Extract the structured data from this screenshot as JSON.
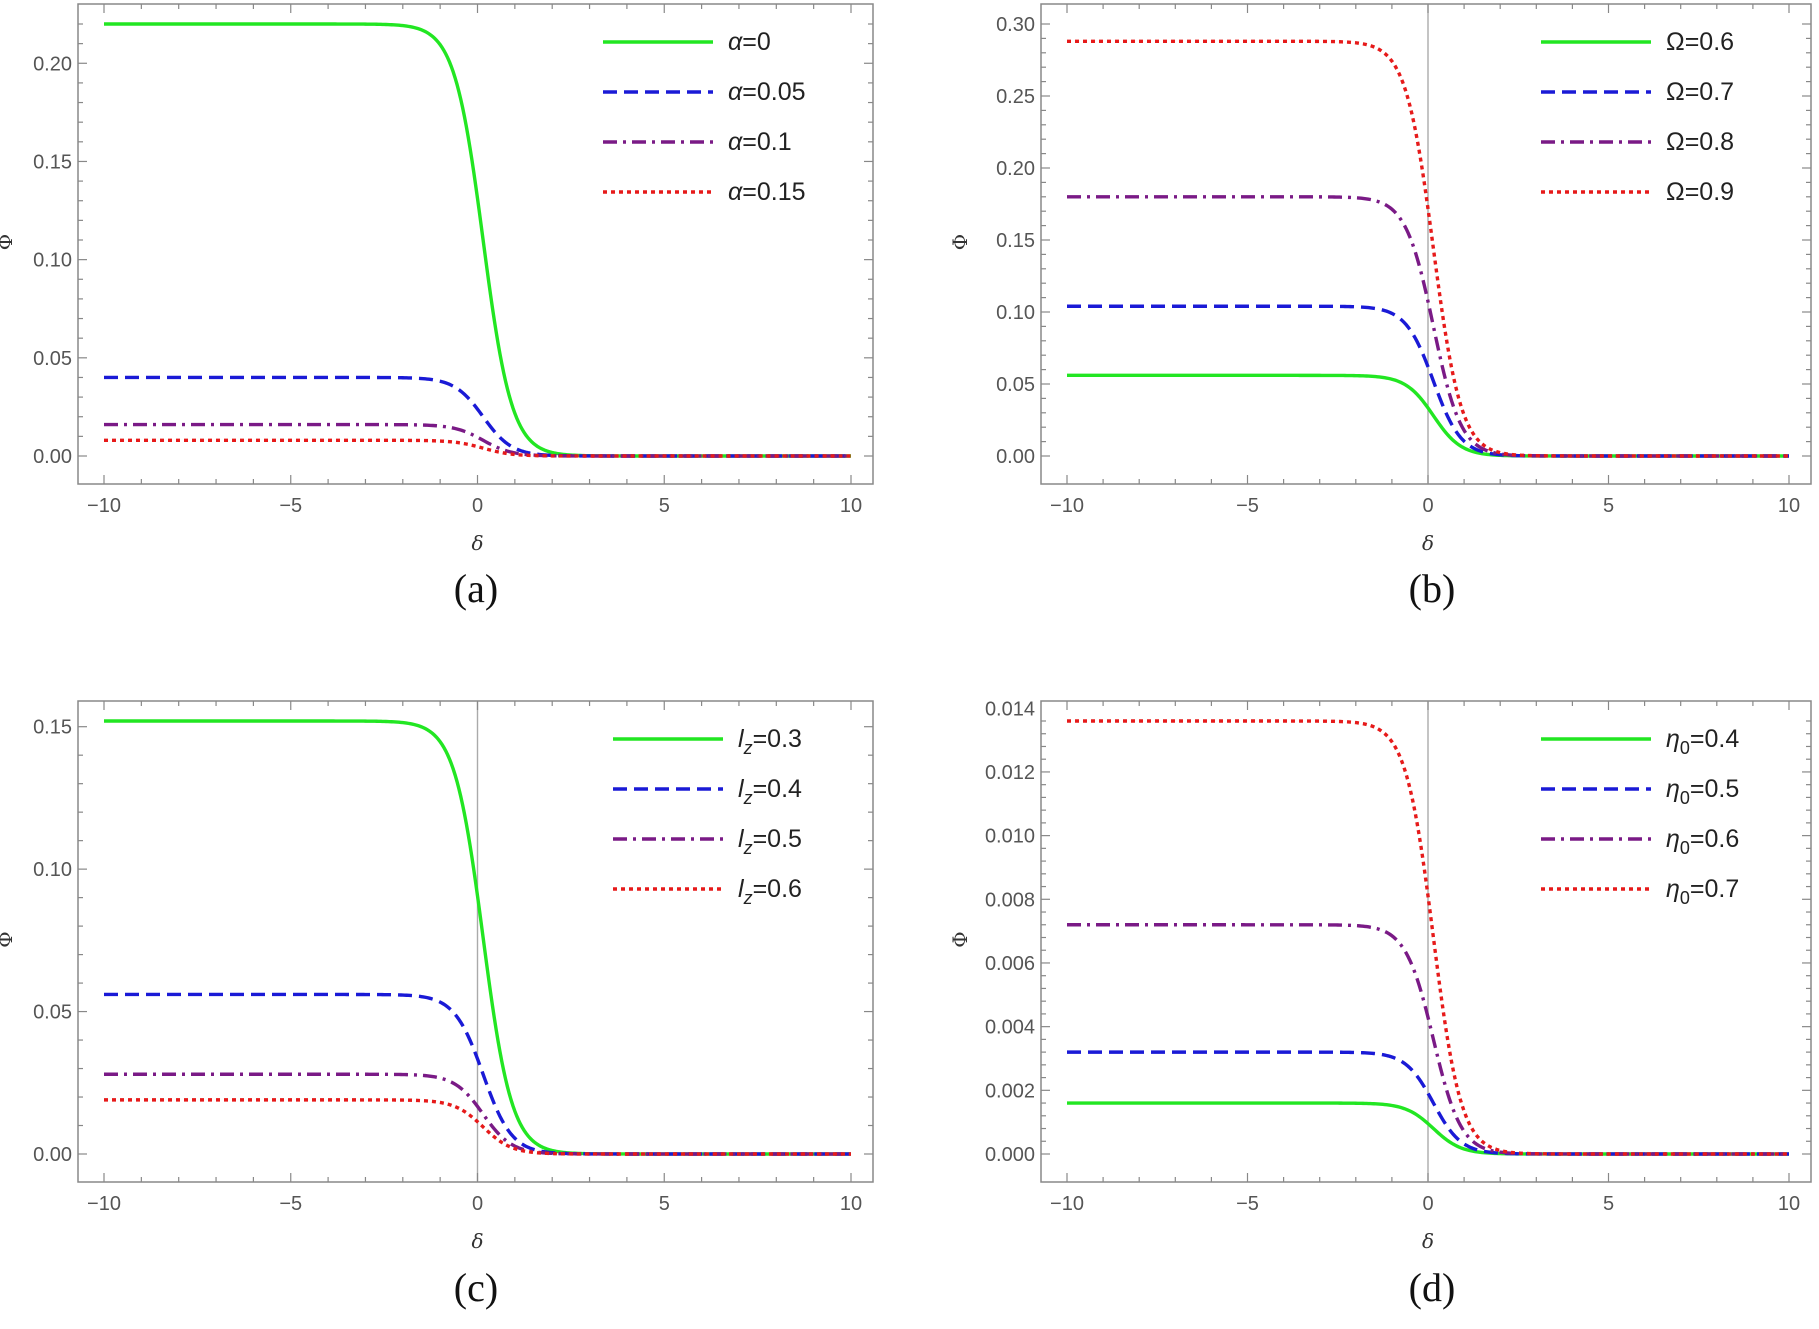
{
  "chart_data": [
    {
      "panel": "(a)",
      "type": "line",
      "xlabel": "δ",
      "ylabel": "Φ",
      "xlim": [
        -10,
        10
      ],
      "ylim": [
        0,
        0.22
      ],
      "xticks": [
        "−10",
        "−5",
        "0",
        "5",
        "10"
      ],
      "yticks": [
        "0.00",
        "0.05",
        "0.10",
        "0.15",
        "0.20"
      ],
      "ytick_values": [
        0,
        0.05,
        0.1,
        0.15,
        0.2
      ],
      "show_zero_line": false,
      "legend_position": "top-right",
      "series": [
        {
          "name": "α=0",
          "amplitude": 0.22,
          "style": "solid",
          "color": "#22e622"
        },
        {
          "name": "α=0.05",
          "amplitude": 0.04,
          "style": "dashed",
          "color": "#1a1ad6"
        },
        {
          "name": "α=0.1",
          "amplitude": 0.016,
          "style": "dashdot",
          "color": "#7a1a86"
        },
        {
          "name": "α=0.15",
          "amplitude": 0.008,
          "style": "dotted",
          "color": "#e61a1a"
        }
      ]
    },
    {
      "panel": "(b)",
      "type": "line",
      "xlabel": "δ",
      "ylabel": "Φ",
      "xlim": [
        -10,
        10
      ],
      "ylim": [
        0,
        0.3
      ],
      "xticks": [
        "−10",
        "−5",
        "0",
        "5",
        "10"
      ],
      "yticks": [
        "0.00",
        "0.05",
        "0.10",
        "0.15",
        "0.20",
        "0.25",
        "0.30"
      ],
      "ytick_values": [
        0,
        0.05,
        0.1,
        0.15,
        0.2,
        0.25,
        0.3
      ],
      "show_zero_line": true,
      "legend_position": "top-right",
      "series": [
        {
          "name": "Ω=0.6",
          "amplitude": 0.056,
          "style": "solid",
          "color": "#22e622"
        },
        {
          "name": "Ω=0.7",
          "amplitude": 0.104,
          "style": "dashed",
          "color": "#1a1ad6"
        },
        {
          "name": "Ω=0.8",
          "amplitude": 0.18,
          "style": "dashdot",
          "color": "#7a1a86"
        },
        {
          "name": "Ω=0.9",
          "amplitude": 0.288,
          "style": "dotted",
          "color": "#e61a1a"
        }
      ]
    },
    {
      "panel": "(c)",
      "type": "line",
      "xlabel": "δ",
      "ylabel": "Φ",
      "xlim": [
        -10,
        10
      ],
      "ylim": [
        0,
        0.152
      ],
      "xticks": [
        "−10",
        "−5",
        "0",
        "5",
        "10"
      ],
      "yticks": [
        "0.00",
        "0.05",
        "0.10",
        "0.15"
      ],
      "ytick_values": [
        0,
        0.05,
        0.1,
        0.15
      ],
      "show_zero_line": true,
      "legend_position": "top-right",
      "series": [
        {
          "name": "l",
          "sub": "z",
          "suffix": "=0.3",
          "amplitude": 0.152,
          "style": "solid",
          "color": "#22e622"
        },
        {
          "name": "l",
          "sub": "z",
          "suffix": "=0.4",
          "amplitude": 0.056,
          "style": "dashed",
          "color": "#1a1ad6"
        },
        {
          "name": "l",
          "sub": "z",
          "suffix": "=0.5",
          "amplitude": 0.028,
          "style": "dashdot",
          "color": "#7a1a86"
        },
        {
          "name": "l",
          "sub": "z",
          "suffix": "=0.6",
          "amplitude": 0.019,
          "style": "dotted",
          "color": "#e61a1a"
        }
      ]
    },
    {
      "panel": "(d)",
      "type": "line",
      "xlabel": "δ",
      "ylabel": "Φ",
      "xlim": [
        -10,
        10
      ],
      "ylim": [
        0,
        0.0136
      ],
      "xticks": [
        "−10",
        "−5",
        "0",
        "5",
        "10"
      ],
      "yticks": [
        "0.000",
        "0.002",
        "0.004",
        "0.006",
        "0.008",
        "0.010",
        "0.012",
        "0.014"
      ],
      "ytick_values": [
        0,
        0.002,
        0.004,
        0.006,
        0.008,
        0.01,
        0.012,
        0.014
      ],
      "show_zero_line": true,
      "legend_position": "top-right",
      "series": [
        {
          "name": "η",
          "sub": "0",
          "suffix": "=0.4",
          "amplitude": 0.0016,
          "style": "solid",
          "color": "#22e622"
        },
        {
          "name": "η",
          "sub": "0",
          "suffix": "=0.5",
          "amplitude": 0.0032,
          "style": "dashed",
          "color": "#1a1ad6"
        },
        {
          "name": "η",
          "sub": "0",
          "suffix": "=0.6",
          "amplitude": 0.0072,
          "style": "dashdot",
          "color": "#7a1a86"
        },
        {
          "name": "η",
          "sub": "0",
          "suffix": "=0.7",
          "amplitude": 0.0136,
          "style": "dotted",
          "color": "#e61a1a"
        }
      ]
    }
  ]
}
